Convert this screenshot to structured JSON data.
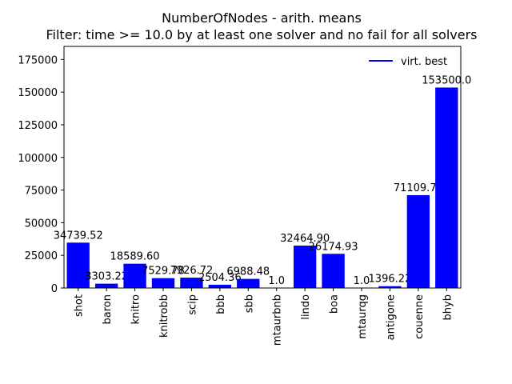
{
  "chart_data": {
    "type": "bar",
    "title": "NumberOfNodes - arith. means",
    "subtitle": "Filter: time >= 10.0 by at least one solver and no fail for all solvers",
    "categories": [
      "shot",
      "baron",
      "knitro",
      "knitrobb",
      "scip",
      "bbb",
      "sbb",
      "mtaurbnb",
      "lindo",
      "boa",
      "mtaurqg",
      "antigone",
      "couenne",
      "bhyb"
    ],
    "values": [
      34739.52,
      3303.22,
      18589.6,
      7529.78,
      7926.72,
      2504.36,
      6988.48,
      1.0,
      32464.9,
      26174.93,
      1.0,
      1396.22,
      71109.71,
      153500.0
    ],
    "value_labels": [
      "34739.52",
      "3303.22",
      "18589.60",
      "7529.78",
      "7926.72",
      "2504.36",
      "6988.48",
      "1.0",
      "32464.90",
      "26174.93",
      "1.0",
      "1396.22",
      "71109.71",
      "153500.0"
    ],
    "ylim": [
      0,
      185000
    ],
    "yticks": [
      0,
      25000,
      50000,
      75000,
      100000,
      125000,
      150000,
      175000
    ],
    "ytick_labels": [
      "0",
      "25000",
      "50000",
      "75000",
      "100000",
      "125000",
      "150000",
      "175000"
    ],
    "xlabel": "",
    "ylabel": "",
    "legend": {
      "label": "virt. best",
      "placement": "top-right",
      "color": "#0000ff"
    },
    "bar_color": "#0000ff",
    "grid": false
  }
}
